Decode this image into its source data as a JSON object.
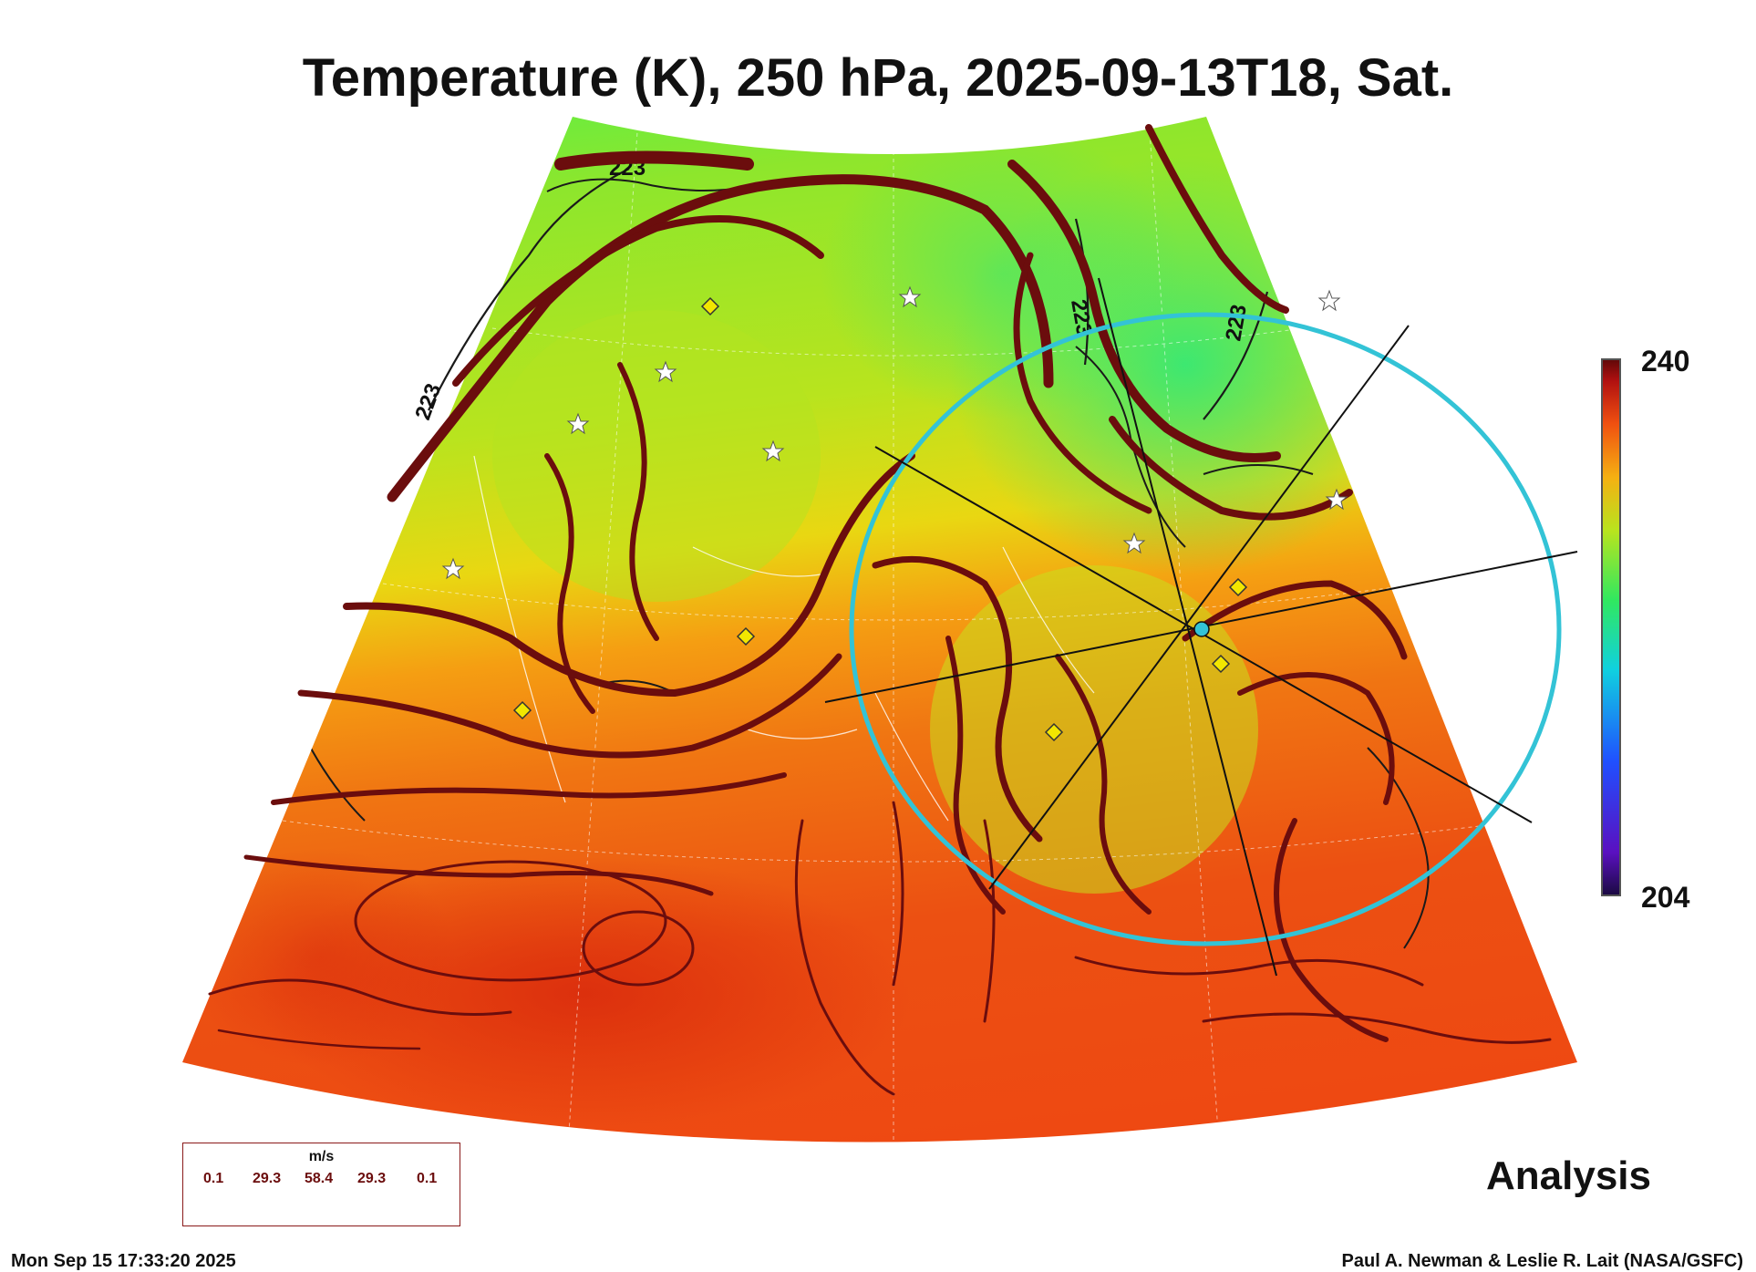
{
  "title": "Temperature (K), 250 hPa, 2025-09-13T18, Sat.",
  "colorbar": {
    "max": "240",
    "min": "204"
  },
  "contour_labels": [
    "223",
    "223",
    "223",
    "223"
  ],
  "legend": {
    "unit": "m/s",
    "values": [
      "0.1",
      "29.3",
      "58.4",
      "29.3",
      "0.1"
    ]
  },
  "panel_label": "Analysis",
  "timestamp": "Mon Sep 15 17:33:20 2025",
  "credits": "Paul A. Newman & Leslie R. Lait (NASA/GSFC)",
  "colors": {
    "streamline": "#6b0d0d",
    "ring": "#33c3d6",
    "marker": "#f2e600",
    "hot": "#ee4a12",
    "warm": "#f08a12",
    "mid": "#c7e020",
    "cool": "#2fe87a"
  },
  "icons": [
    "star-marker-icon",
    "diamond-marker-icon"
  ]
}
